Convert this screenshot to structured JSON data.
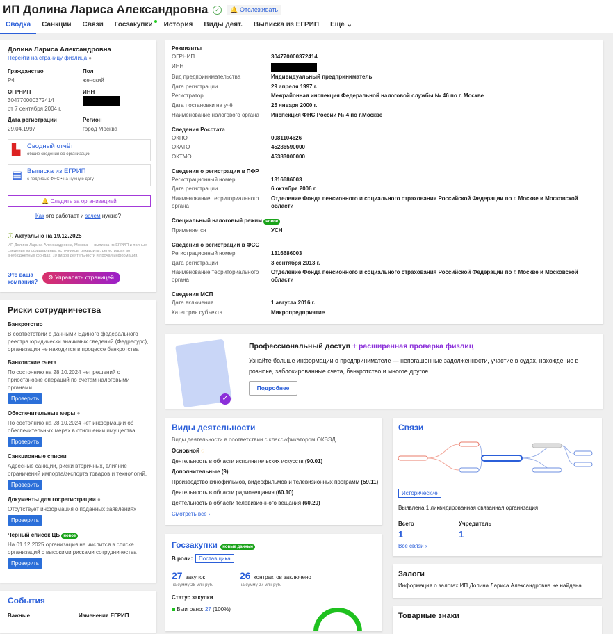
{
  "header": {
    "title": "ИП Долина Лариса Александровна",
    "follow": "Отслеживать",
    "tabs": [
      "Сводка",
      "Санкции",
      "Связи",
      "Госзакупки",
      "История",
      "Виды деят.",
      "Выписка из ЕГРИП",
      "Еще"
    ]
  },
  "profile": {
    "name": "Долина Лариса Александровна",
    "link": "Перейти на страницу физлица",
    "citizenship_l": "Гражданство",
    "citizenship": "РФ",
    "sex_l": "Пол",
    "sex": "женский",
    "ogrnip_l": "ОГРНИП",
    "ogrnip": "304770000372414",
    "ogrnip_date": "от 7 сентября 2004 г.",
    "inn_l": "ИНН",
    "reg_l": "Дата регистрации",
    "reg": "29.04.1997",
    "region_l": "Регион",
    "region": "город Москва",
    "doc1": "Сводный отчёт",
    "doc1_sub": "общие сведения об организации",
    "doc2": "Выписка из ЕГРИП",
    "doc2_sub": "с подписью ФНС • на нужную дату",
    "follow_btn": "Следить за организацией",
    "how1": "Как",
    "how2": " это работает и ",
    "how3": "зачем",
    "how4": " нужно?",
    "actual": "Актуально на 19.12.2025",
    "desc": "ИП Долина Лариса Александровна, Москва — выписка из ЕГРИП и полные сведения из официальных источников: реквизиты, регистрация во внебюджетных фондах, 10 видов деятельности и прочая информация.",
    "your": "Это ваша компания?",
    "manage": "Управлять страницей"
  },
  "risks": {
    "title": "Риски сотрудничества",
    "check": "Проверить",
    "items": [
      {
        "t": "Банкротство",
        "d": "В соответствии с данными Единого федерального реестра юридически значимых сведений (Федресурс), организация не находится в процессе банкротства"
      },
      {
        "t": "Банковские счета",
        "d": "По состоянию на 28.10.2024 нет решений о приостановке операций по счетам налоговыми органами"
      },
      {
        "t": "Обеспечительные меры",
        "d": "По состоянию на 28.10.2024 нет информации об обеспечительных мерах в отношении имущества"
      },
      {
        "t": "Санкционные списки",
        "d": "Адресные санкции, риски вторичных, влияние ограничений импорта/экспорта товаров и технологий."
      },
      {
        "t": "Документы для госрегистрации",
        "d": "Отсутствует информация о поданных заявлениях"
      },
      {
        "t": "Черный список ЦБ",
        "badge": "новое",
        "d": "На 01.12.2025 организация не числится в списке организаций с высокими рисками сотрудничества"
      }
    ]
  },
  "events": {
    "title": "События",
    "c1": "Важные",
    "c2": "Изменения ЕГРИП"
  },
  "requisites": {
    "rows": [
      {
        "sec": "Реквизиты"
      },
      {
        "l": "ОГРНИП",
        "v": "304770000372414"
      },
      {
        "l": "ИНН",
        "v": ""
      },
      {
        "l": "Вид предпринимательства",
        "v": "Индивидуальный предприниматель"
      },
      {
        "l": "Дата регистрации",
        "v": "29 апреля 1997 г."
      },
      {
        "l": "Регистратор",
        "v": "Межрайонная инспекция Федеральной налоговой службы № 46 по г. Москве"
      },
      {
        "l": "Дата постановки на учёт",
        "v": "25 января 2000 г."
      },
      {
        "l": "Наименование налогового органа",
        "v": "Инспекция ФНС России № 4 по г.Москве"
      },
      {
        "sec": "Сведения Росстата"
      },
      {
        "l": "ОКПО",
        "v": "0081104626"
      },
      {
        "l": "ОКАТО",
        "v": "45286590000"
      },
      {
        "l": "ОКТМО",
        "v": "45383000000"
      },
      {
        "sec": "Сведения о регистрации в ПФР"
      },
      {
        "l": "Регистрационный номер",
        "v": "1316686003"
      },
      {
        "l": "Дата регистрации",
        "v": "6 октября 2006 г."
      },
      {
        "l": "Наименование территориального органа",
        "v": "Отделение Фонда пенсионного и социального страхования Российской Федерации по г. Москве и Московской области"
      },
      {
        "sec": "Специальный налоговый режим",
        "badge": "новое"
      },
      {
        "l": "Применяется",
        "v": "УСН"
      },
      {
        "sec": "Сведения о регистрации в ФСС"
      },
      {
        "l": "Регистрационный номер",
        "v": "1316686003"
      },
      {
        "l": "Дата регистрации",
        "v": "3 сентября 2013 г."
      },
      {
        "l": "Наименование территориального органа",
        "v": "Отделение Фонда пенсионного и социального страхования Российской Федерации по г. Москве и Московской области"
      },
      {
        "sec": "Сведения МСП"
      },
      {
        "l": "Дата включения",
        "v": "1 августа 2016 г."
      },
      {
        "l": "Категория субъекта",
        "v": "Микропредприятие"
      }
    ]
  },
  "pro": {
    "t1": "Профессиональный доступ",
    "t2": " + расширенная проверка физлиц",
    "d": "Узнайте больше информации о предпринимателе — непогашенные задолженности, участие в судах, нахождение в розыске, заблокированные счета, банкротство и многое другое.",
    "btn": "Подробнее"
  },
  "activities": {
    "title": "Виды деятельности",
    "sub": "Виды деятельности в соответствии с классификатором ОКВЭД.",
    "main": "Основной",
    "main_item": "Деятельность в области исполнительских искусств",
    "main_code": "(90.01)",
    "extra": "Дополнительные (9)",
    "items": [
      {
        "t": "Производство кинофильмов, видеофильмов и телевизионных программ",
        "c": "(59.11)"
      },
      {
        "t": "Деятельность в области радиовещания",
        "c": "(60.10)"
      },
      {
        "t": "Деятельность в области телевизионного вещания",
        "c": "(60.20)"
      }
    ],
    "more": "Смотреть все"
  },
  "links": {
    "title": "Связи",
    "hist": "Исторические",
    "note": "Выявлена 1 ликвидированная связанная организация",
    "total_l": "Всего",
    "total": "1",
    "founder_l": "Учредитель",
    "founder": "1",
    "all": "Все связи"
  },
  "procurement": {
    "title": "Госзакупки",
    "badge": "новые данные",
    "role_l": "В роли:",
    "role": "Поставщика",
    "n1": "27",
    "n1_l": "закупок",
    "n1_s": "на сумму 28 млн руб.",
    "n2": "26",
    "n2_l": "контрактов заключено",
    "n2_s": "на сумму 27 млн руб.",
    "status": "Статус закупки",
    "won_l": "Выиграно:",
    "won": "27",
    "won_p": "(100%)",
    "color": "#1fc11f"
  },
  "pledges": {
    "title": "Залоги",
    "d": "Информация о залогах ИП Долина Лариса Александровна не найдена."
  },
  "trademarks": {
    "title": "Товарные знаки"
  }
}
